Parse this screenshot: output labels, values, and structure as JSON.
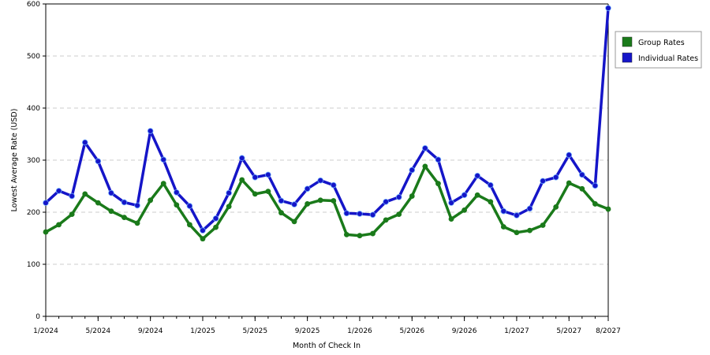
{
  "chart_data": {
    "type": "line",
    "xlabel": "Month of Check In",
    "ylabel": "Lowest Average Rate (USD)",
    "ylim": [
      0,
      600
    ],
    "yticks": [
      0,
      100,
      200,
      300,
      400,
      500,
      600
    ],
    "grid": "horizontal dashed",
    "legend_position": "right",
    "x": [
      "1/2024",
      "2/2024",
      "3/2024",
      "4/2024",
      "5/2024",
      "6/2024",
      "7/2024",
      "8/2024",
      "9/2024",
      "10/2024",
      "11/2024",
      "12/2024",
      "1/2025",
      "2/2025",
      "3/2025",
      "4/2025",
      "5/2025",
      "6/2025",
      "7/2025",
      "8/2025",
      "9/2025",
      "10/2025",
      "11/2025",
      "12/2025",
      "1/2026",
      "2/2026",
      "3/2026",
      "4/2026",
      "5/2026",
      "6/2026",
      "7/2026",
      "8/2026",
      "9/2026",
      "10/2026",
      "11/2026",
      "12/2026",
      "1/2027",
      "2/2027",
      "3/2027",
      "4/2027",
      "5/2027",
      "6/2027",
      "7/2027",
      "8/2027"
    ],
    "xtick_labels": [
      "1/2024",
      "5/2024",
      "9/2024",
      "1/2025",
      "5/2025",
      "9/2025",
      "1/2026",
      "5/2026",
      "9/2026",
      "1/2027",
      "5/2027",
      "8/2027"
    ],
    "series": [
      {
        "name": "Group Rates",
        "color": "#1a7a1a",
        "values": [
          162,
          176,
          196,
          235,
          218,
          202,
          190,
          179,
          223,
          255,
          214,
          176,
          149,
          171,
          211,
          262,
          235,
          240,
          199,
          182,
          216,
          223,
          222,
          157,
          155,
          159,
          185,
          196,
          231,
          288,
          255,
          187,
          204,
          233,
          220,
          172,
          161,
          165,
          175,
          210,
          256,
          245,
          216,
          206
        ]
      },
      {
        "name": "Individual Rates",
        "color": "#1515c8",
        "values": [
          218,
          241,
          231,
          334,
          298,
          237,
          219,
          213,
          356,
          301,
          238,
          212,
          165,
          188,
          237,
          304,
          267,
          272,
          222,
          215,
          245,
          261,
          252,
          198,
          197,
          195,
          220,
          229,
          281,
          323,
          301,
          218,
          233,
          270,
          252,
          202,
          194,
          207,
          260,
          267,
          310,
          272,
          251,
          592
        ]
      }
    ]
  }
}
